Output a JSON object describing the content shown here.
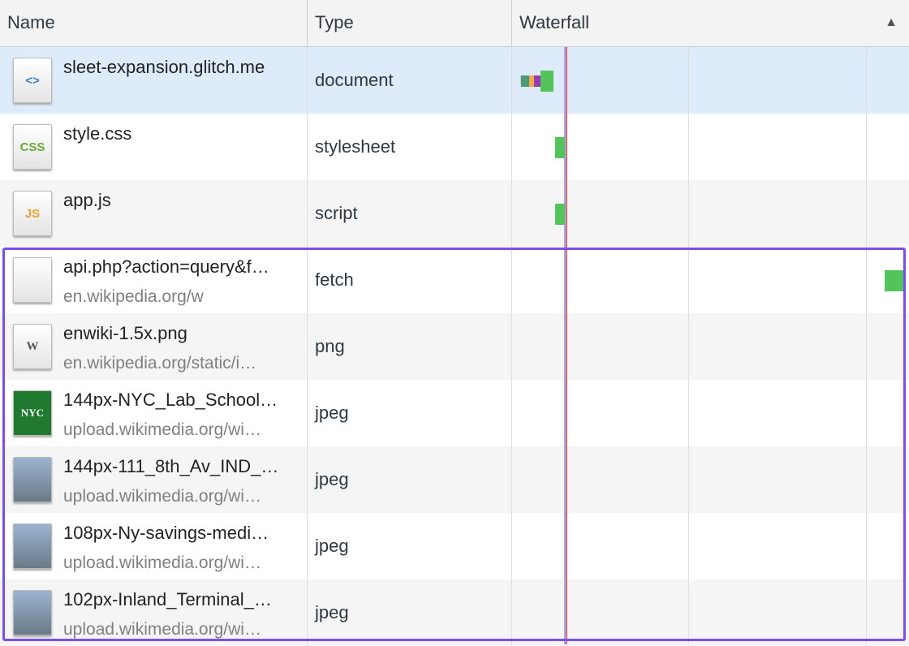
{
  "header": {
    "name": "Name",
    "type": "Type",
    "waterfall": "Waterfall"
  },
  "colors": {
    "selected_row": "#ddebfb",
    "highlight": "#7b4ef0",
    "bar_green": "#52c45a",
    "load_line": "#e06c6c",
    "dcl_line": "#9da7f5"
  },
  "rows": [
    {
      "name": "sleet-expansion.glitch.me",
      "sub": "",
      "type": "document",
      "icon": "html-file-icon",
      "icon_text": "<>"
    },
    {
      "name": "style.css",
      "sub": "",
      "type": "stylesheet",
      "icon": "css-file-icon",
      "icon_text": "CSS"
    },
    {
      "name": "app.js",
      "sub": "",
      "type": "script",
      "icon": "js-file-icon",
      "icon_text": "JS"
    },
    {
      "name": "api.php?action=query&f…",
      "sub": "en.wikipedia.org/w",
      "type": "fetch",
      "icon": "blank-file-icon",
      "icon_text": ""
    },
    {
      "name": "enwiki-1.5x.png",
      "sub": "en.wikipedia.org/static/i…",
      "type": "png",
      "icon": "wikipedia-logo-thumbnail",
      "icon_text": "W"
    },
    {
      "name": "144px-NYC_Lab_School…",
      "sub": "upload.wikimedia.org/wi…",
      "type": "jpeg",
      "icon": "nyc-lab-school-thumbnail",
      "icon_text": "NYC"
    },
    {
      "name": "144px-111_8th_Av_IND_…",
      "sub": "upload.wikimedia.org/wi…",
      "type": "jpeg",
      "icon": "building-thumbnail",
      "icon_text": ""
    },
    {
      "name": "108px-Ny-savings-medi…",
      "sub": "upload.wikimedia.org/wi…",
      "type": "jpeg",
      "icon": "building-thumbnail",
      "icon_text": ""
    },
    {
      "name": "102px-Inland_Terminal_…",
      "sub": "upload.wikimedia.org/wi…",
      "type": "jpeg",
      "icon": "building-thumbnail",
      "icon_text": ""
    }
  ]
}
